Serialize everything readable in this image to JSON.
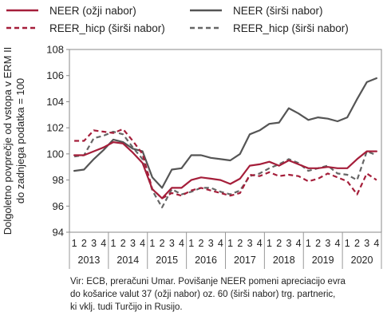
{
  "chart_data": {
    "type": "line",
    "ylabel_lines": [
      "Dolgoletno povprečje od vstopa v ERM II",
      "do zadnjega podatka = 100"
    ],
    "ylim": [
      94,
      108
    ],
    "yticks": [
      94,
      96,
      98,
      100,
      102,
      104,
      106,
      108
    ],
    "grid": false,
    "legend_position": "top",
    "quarters": [
      "1",
      "2",
      "3",
      "4"
    ],
    "years": [
      "2013",
      "2014",
      "2015",
      "2016",
      "2017",
      "2018",
      "2019",
      "2020"
    ],
    "series": [
      {
        "name": "NEER (ožji nabor)",
        "color": "#a51e3a",
        "dash": "solid",
        "values": [
          99.9,
          99.9,
          100.2,
          100.5,
          100.9,
          100.8,
          100.1,
          99.3,
          97.3,
          96.6,
          97.4,
          97.4,
          98.0,
          98.2,
          98.1,
          98.0,
          97.7,
          98.1,
          99.1,
          99.2,
          99.4,
          99.1,
          99.5,
          99.2,
          98.9,
          98.9,
          99.0,
          98.9,
          98.9,
          99.6,
          100.2,
          100.2
        ]
      },
      {
        "name": "NEER (širši nabor)",
        "color": "#555555",
        "dash": "solid",
        "values": [
          98.7,
          98.8,
          99.6,
          100.3,
          101.1,
          100.9,
          100.4,
          100.2,
          98.2,
          97.4,
          98.8,
          98.9,
          99.9,
          99.9,
          99.7,
          99.6,
          99.5,
          100.0,
          101.5,
          101.8,
          102.3,
          102.4,
          103.5,
          103.1,
          102.6,
          102.8,
          102.7,
          102.5,
          102.8,
          104.2,
          105.5,
          105.8
        ]
      },
      {
        "name": "REER_hicp (širši nabor)",
        "color": "#a51e3a",
        "dash": "dashed",
        "values": [
          101.0,
          101.0,
          101.8,
          101.7,
          101.6,
          101.9,
          101.0,
          100.0,
          97.3,
          96.6,
          97.0,
          96.8,
          97.2,
          97.4,
          97.2,
          97.0,
          96.8,
          97.0,
          98.4,
          98.3,
          98.6,
          98.3,
          98.4,
          98.3,
          97.9,
          98.1,
          98.5,
          98.2,
          97.9,
          96.9,
          98.5,
          98.0
        ]
      },
      {
        "name": "REER_hicp (širši nabor)",
        "color": "#666666",
        "dash": "dashed",
        "values": [
          99.8,
          99.9,
          101.2,
          101.4,
          101.7,
          101.5,
          100.5,
          99.6,
          97.2,
          95.9,
          97.3,
          96.9,
          97.1,
          97.4,
          97.4,
          97.1,
          96.9,
          97.2,
          98.3,
          98.5,
          98.9,
          99.2,
          99.6,
          99.3,
          98.7,
          98.9,
          99.1,
          98.5,
          98.4,
          98.0,
          100.2,
          99.9
        ]
      }
    ]
  },
  "source_lines": [
    "Vir: ECB, preračuni Umar. Povišanje NEER pomeni apreciacijo evra",
    "do košarice valut 37 (ožji nabor) oz. 60 (širši nabor) trg. partneric,",
    "ki vklj. tudi Turčijo in Rusijo."
  ]
}
